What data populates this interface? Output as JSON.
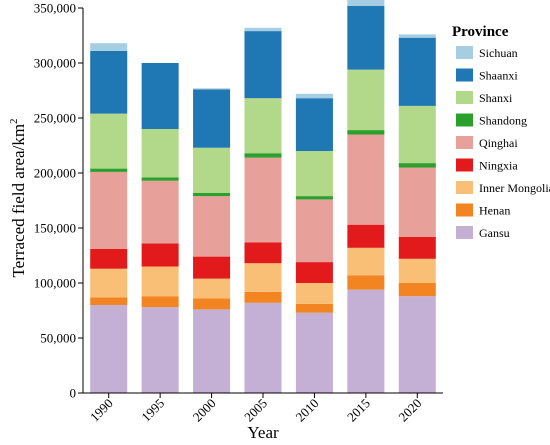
{
  "chart_data": {
    "type": "bar",
    "stacked": true,
    "xlabel": "Year",
    "ylabel": "Terraced field area/km",
    "ylabel_superscript": "2",
    "ylim": [
      0,
      350000
    ],
    "yticks": [
      0,
      50000,
      100000,
      150000,
      200000,
      250000,
      300000,
      350000
    ],
    "ytick_labels": [
      "0",
      "50,000",
      "100,000",
      "150,000",
      "200,000",
      "250,000",
      "300,000",
      "350,000"
    ],
    "categories": [
      "1990",
      "1995",
      "2000",
      "2005",
      "2010",
      "2015",
      "2020"
    ],
    "legend_title": "Province",
    "legend_position": "right",
    "series": [
      {
        "name": "Gansu",
        "color": "#c5b0d5",
        "values": [
          80000,
          78000,
          76000,
          82000,
          73000,
          94000,
          88000
        ]
      },
      {
        "name": "Henan",
        "color": "#f28522",
        "values": [
          7000,
          10000,
          10000,
          10000,
          8000,
          13000,
          12000
        ]
      },
      {
        "name": "Inner Mongolia",
        "color": "#f9bf76",
        "values": [
          26000,
          27000,
          18000,
          26000,
          19000,
          25000,
          22000
        ]
      },
      {
        "name": "Ningxia",
        "color": "#e31a1c",
        "values": [
          18000,
          21000,
          20000,
          19000,
          19000,
          21000,
          20000
        ]
      },
      {
        "name": "Qinghai",
        "color": "#e8a09a",
        "values": [
          70000,
          57000,
          55000,
          77000,
          57000,
          82000,
          63000
        ]
      },
      {
        "name": "Shandong",
        "color": "#2ca02c",
        "values": [
          3000,
          3000,
          3000,
          4000,
          3000,
          4000,
          4000
        ]
      },
      {
        "name": "Shanxi",
        "color": "#b2d88a",
        "values": [
          50000,
          44000,
          41000,
          50000,
          41000,
          55000,
          52000
        ]
      },
      {
        "name": "Shaanxi",
        "color": "#1f77b4",
        "values": [
          57000,
          60000,
          53000,
          61000,
          48000,
          58000,
          62000
        ]
      },
      {
        "name": "Sichuan",
        "color": "#a6cee3",
        "values": [
          7000,
          0,
          1000,
          3000,
          4000,
          7000,
          3000
        ]
      }
    ],
    "legend_order": [
      "Sichuan",
      "Shaanxi",
      "Shanxi",
      "Shandong",
      "Qinghai",
      "Ningxia",
      "Inner Mongolia",
      "Henan",
      "Gansu"
    ]
  }
}
